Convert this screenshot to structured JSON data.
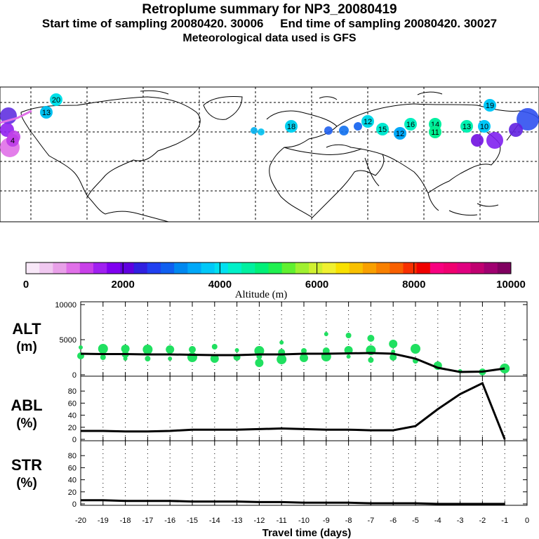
{
  "header": {
    "title": "Retroplume summary for NP3_20080419",
    "start_label": "Start time of sampling 20080420. 30006",
    "end_label": "End time of sampling 20080420. 30027",
    "met_label": "Meteorological data used is GFS"
  },
  "colorbar": {
    "ticks": [
      "0",
      "2000",
      "4000",
      "6000",
      "8000",
      "10000"
    ],
    "label": "Altitude (m)",
    "colors": [
      "#f8e8f8",
      "#f0c8f0",
      "#e8a0e8",
      "#e070e8",
      "#c840e8",
      "#a020f0",
      "#8000f0",
      "#6000e0",
      "#3020e0",
      "#2040f0",
      "#1060f0",
      "#0088f0",
      "#00a8f8",
      "#00c8f8",
      "#00e0f0",
      "#00f0c8",
      "#00f0a0",
      "#00f078",
      "#20f050",
      "#60f030",
      "#a0f030",
      "#d0f030",
      "#f0f030",
      "#f8e000",
      "#f8c000",
      "#f8a000",
      "#f88000",
      "#f86000",
      "#f83000",
      "#f00000",
      "#f80080",
      "#f00070",
      "#e00080",
      "#c00070",
      "#a00070",
      "#800060"
    ]
  },
  "map": {
    "markers": [
      {
        "label": "20",
        "color": "#00e0e8"
      },
      {
        "label": "13",
        "color": "#00c0f0"
      },
      {
        "label": "18",
        "color": "#00d0f0"
      },
      {
        "label": "16",
        "color": "#00f0c0"
      },
      {
        "label": "12",
        "color": "#00a8f8"
      },
      {
        "label": "19",
        "color": "#00c8f8"
      },
      {
        "label": "14",
        "color": "#00f0a0"
      },
      {
        "label": "11",
        "color": "#00f090"
      },
      {
        "label": "13",
        "color": "#00f0b0"
      },
      {
        "label": "10",
        "color": "#00c8f8"
      },
      {
        "label": "15",
        "color": "#00e8d0"
      },
      {
        "label": "12",
        "color": "#00d8e8"
      },
      {
        "label": "4",
        "color": "#c040e8"
      }
    ]
  },
  "panels": {
    "alt": {
      "name": "ALT",
      "unit": "(m)",
      "y_ticks": [
        "10000",
        "5000",
        "0"
      ]
    },
    "abl": {
      "name": "ABL",
      "unit": "(%)",
      "y_ticks": [
        "80",
        "60",
        "40",
        "20",
        "0"
      ]
    },
    "str": {
      "name": "STR",
      "unit": "(%)",
      "y_ticks": [
        "80",
        "60",
        "40",
        "20",
        "0"
      ]
    }
  },
  "chart_data": {
    "type": "line",
    "x_ticks": [
      "-20",
      "-19",
      "-18",
      "-17",
      "-16",
      "-15",
      "-14",
      "-13",
      "-12",
      "-11",
      "-10",
      "-9",
      "-8",
      "-7",
      "-6",
      "-5",
      "-4",
      "-3",
      "-2",
      "-1",
      "0"
    ],
    "xlabel": "Travel time (days)",
    "xlim": [
      -20,
      0
    ],
    "x": [
      -20,
      -19,
      -18,
      -17,
      -16,
      -15,
      -14,
      -13,
      -12,
      -11,
      -10,
      -9,
      -8,
      -7,
      -6,
      -5,
      -4,
      -3,
      -2,
      -1
    ],
    "series": [
      {
        "name": "ALT",
        "ylabel": "ALT (m)",
        "ylim": [
          0,
          10000
        ],
        "values": [
          3000,
          2950,
          2950,
          2900,
          2900,
          2850,
          2800,
          2800,
          2900,
          2900,
          3000,
          3000,
          3050,
          3100,
          3000,
          2300,
          1000,
          400,
          450,
          900
        ]
      },
      {
        "name": "ABL",
        "ylabel": "ABL (%)",
        "ylim": [
          0,
          100
        ],
        "values": [
          14,
          14,
          13,
          13,
          14,
          16,
          16,
          16,
          17,
          18,
          17,
          16,
          16,
          15,
          15,
          22,
          50,
          75,
          93,
          0
        ]
      },
      {
        "name": "STR",
        "ylabel": "STR (%)",
        "ylim": [
          0,
          100
        ],
        "values": [
          6,
          6,
          5,
          5,
          5,
          4,
          4,
          4,
          3,
          3,
          2,
          2,
          2,
          1,
          1,
          1,
          0,
          0,
          0,
          0
        ]
      }
    ],
    "scatter": {
      "name": "ALT clusters",
      "color": "#20e060",
      "points": [
        [
          -20,
          3900
        ],
        [
          -20,
          2700
        ],
        [
          -19,
          3700
        ],
        [
          -19,
          2500
        ],
        [
          -18,
          3700
        ],
        [
          -18,
          2300
        ],
        [
          -18,
          2900
        ],
        [
          -17,
          3600
        ],
        [
          -17,
          2300
        ],
        [
          -16,
          3600
        ],
        [
          -16,
          2300
        ],
        [
          -15,
          3600
        ],
        [
          -15,
          2500
        ],
        [
          -14,
          4000
        ],
        [
          -14,
          2300
        ],
        [
          -13,
          3500
        ],
        [
          -13,
          2500
        ],
        [
          -12,
          3400
        ],
        [
          -12,
          2600
        ],
        [
          -12,
          1700
        ],
        [
          -11,
          4600
        ],
        [
          -11,
          3200
        ],
        [
          -11,
          2200
        ],
        [
          -10,
          3400
        ],
        [
          -10,
          2400
        ],
        [
          -9,
          5800
        ],
        [
          -9,
          3400
        ],
        [
          -9,
          2600
        ],
        [
          -8,
          5600
        ],
        [
          -8,
          3500
        ],
        [
          -8,
          2600
        ],
        [
          -7,
          5200
        ],
        [
          -7,
          3500
        ],
        [
          -7,
          2100
        ],
        [
          -6,
          4400
        ],
        [
          -6,
          3300
        ],
        [
          -6,
          2500
        ],
        [
          -5,
          3700
        ],
        [
          -5,
          2000
        ],
        [
          -4,
          1300
        ],
        [
          -3,
          500
        ],
        [
          -2,
          400
        ],
        [
          -1,
          900
        ]
      ]
    }
  }
}
